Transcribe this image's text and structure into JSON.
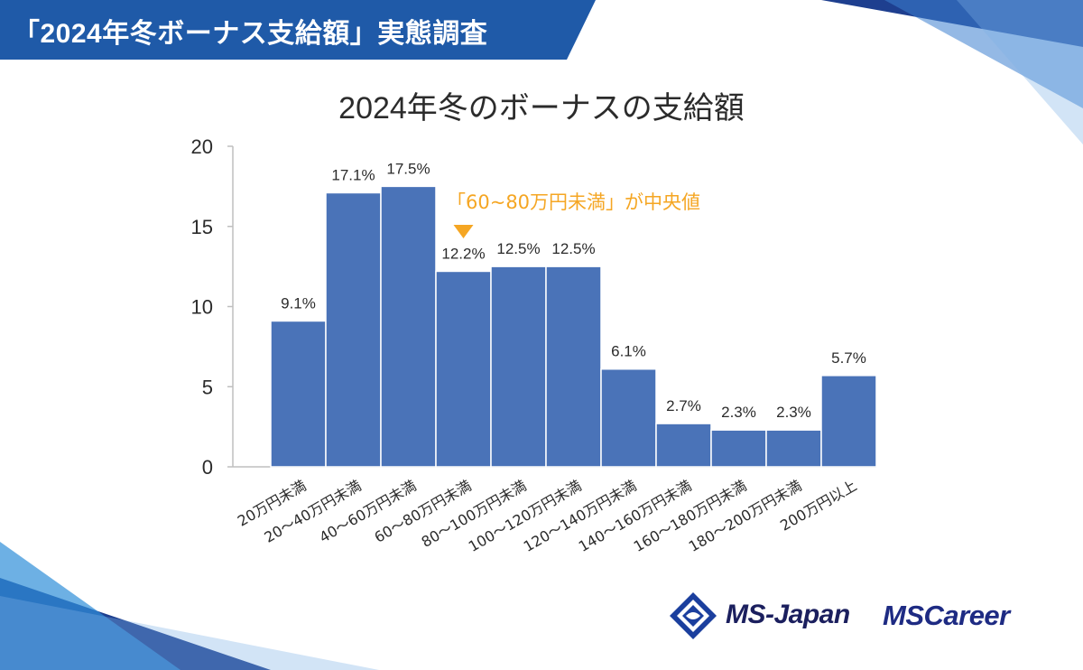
{
  "header": {
    "title": "「2024年冬ボーナス支給額」実態調査"
  },
  "colors": {
    "bar": "#4a73b8",
    "bar_stroke": "#ffffff",
    "axis": "#bfbfbf",
    "annotation": "#f5a623",
    "header_bg": "#1f5aa8",
    "text": "#2b2b2b"
  },
  "chart_data": {
    "type": "bar",
    "title": "2024年冬のボーナスの支給額",
    "categories": [
      "20万円未満",
      "20～40万円未満",
      "40～60万円未満",
      "60～80万円未満",
      "80～100万円未満",
      "100～120万円未満",
      "120～140万円未満",
      "140～160万円未満",
      "160～180万円未満",
      "180～200万円未満",
      "200万円以上"
    ],
    "values": [
      9.1,
      17.1,
      17.5,
      12.2,
      12.5,
      12.5,
      6.1,
      2.7,
      2.3,
      2.3,
      5.7
    ],
    "data_labels": [
      "9.1%",
      "17.1%",
      "17.5%",
      "12.2%",
      "12.5%",
      "12.5%",
      "6.1%",
      "2.7%",
      "2.3%",
      "2.3%",
      "5.7%"
    ],
    "ylim": [
      0,
      20
    ],
    "yticks": [
      0,
      5,
      10,
      15,
      20
    ],
    "xlabel": "",
    "ylabel": "",
    "grid": false,
    "annotation": {
      "text": "「60~80万円未満」が中央値",
      "category_index": 3
    }
  },
  "logos": {
    "ms_japan": "MS-Japan",
    "ms_career": "MSCareer"
  }
}
